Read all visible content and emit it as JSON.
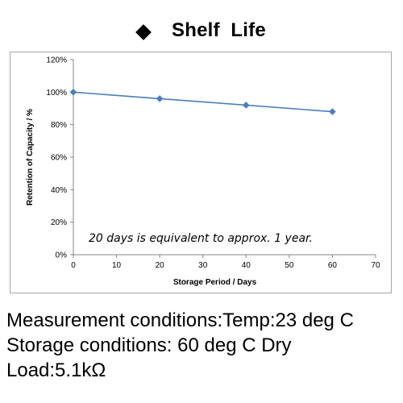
{
  "title": {
    "text": "Shelf  Life",
    "bullet_icon": "diamond-icon"
  },
  "chart_data": {
    "type": "line",
    "title": "",
    "xlabel": "Storage Period / Days",
    "ylabel": "Retention of Capacity / %",
    "xlim": [
      0,
      70
    ],
    "ylim": [
      0,
      120
    ],
    "x_ticks": [
      0,
      10,
      20,
      30,
      40,
      50,
      60,
      70
    ],
    "y_ticks": [
      0,
      20,
      40,
      60,
      80,
      100,
      120
    ],
    "y_tick_format": "percent",
    "grid": false,
    "legend": "none",
    "series": [
      {
        "x": [
          0,
          20,
          40,
          60
        ],
        "values": [
          100,
          96,
          92,
          88
        ],
        "marker": "diamond",
        "color": "#4a7ebb"
      }
    ],
    "annotation": "20 days is equivalent to approx. 1 year."
  },
  "conditions": {
    "measurement": "Measurement conditions:Temp:23 deg C",
    "storage": "Storage conditions: 60 deg C Dry",
    "load": "Load:5.1kΩ"
  },
  "colors": {
    "series": "#4a7ebb",
    "axis": "#868686",
    "frame": "#a6a6a6",
    "text": "#000000"
  }
}
